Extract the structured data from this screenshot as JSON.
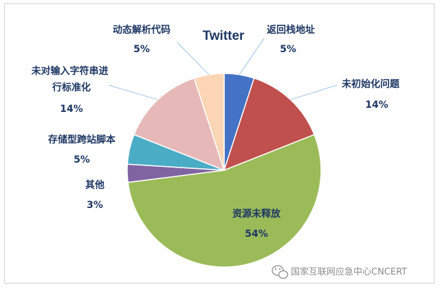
{
  "chart_data": {
    "type": "pie",
    "title": "Twitter",
    "slices": [
      {
        "label": "返回栈地址",
        "value": 5,
        "pct": "5%",
        "color": "#4472c4"
      },
      {
        "label": "未初始化问题",
        "value": 14,
        "pct": "14%",
        "color": "#c0504d"
      },
      {
        "label": "资源未释放",
        "value": 54,
        "pct": "54%",
        "color": "#9bbb59"
      },
      {
        "label": "其他",
        "value": 3,
        "pct": "3%",
        "color": "#8064a2"
      },
      {
        "label": "存储型跨站脚本",
        "value": 5,
        "pct": "5%",
        "color": "#4bacc6"
      },
      {
        "label": "未对输入字符串进行标准化",
        "value": 14,
        "pct": "14%",
        "color": "#e6b9b8"
      },
      {
        "label": "动态解析代码",
        "value": 5,
        "pct": "5%",
        "color": "#fcd5b5"
      }
    ]
  },
  "watermark": {
    "icon": "wechat-icon",
    "text": "国家互联网应急中心CNCERT"
  }
}
